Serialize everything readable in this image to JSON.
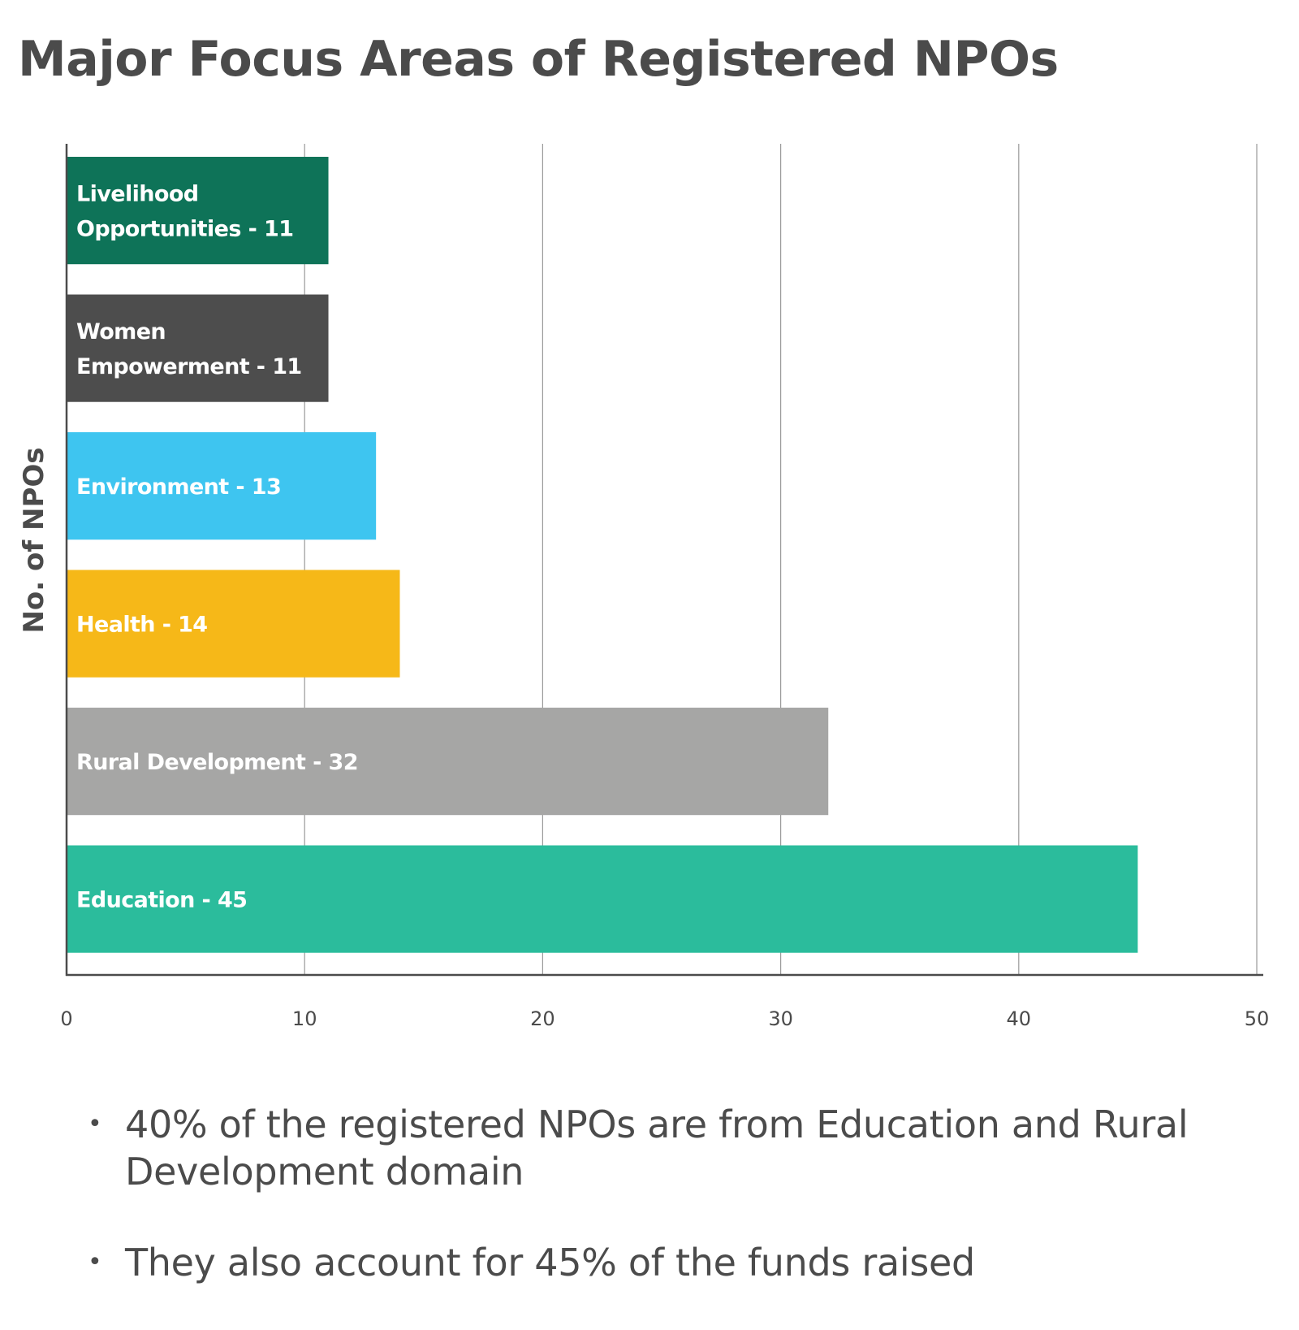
{
  "chart_data": {
    "type": "bar",
    "orientation": "horizontal",
    "title": "Major Focus Areas of Registered NPOs",
    "xlabel": "",
    "ylabel": "No. of NPOs",
    "xlim": [
      0,
      50
    ],
    "xticks": [
      0,
      10,
      20,
      30,
      40,
      50
    ],
    "grid": true,
    "categories": [
      "Livelihood Opportunities",
      "Women Empowerment",
      "Environment",
      "Health",
      "Rural Development",
      "Education"
    ],
    "values": [
      11,
      11,
      13,
      14,
      32,
      45
    ],
    "bar_labels": [
      [
        "Livelihood",
        "Opportunities - 11"
      ],
      [
        "Women",
        "Empowerment - 11"
      ],
      [
        "Environment - 13"
      ],
      [
        "Health - 14"
      ],
      [
        "Rural Development - 32"
      ],
      [
        "Education - 45"
      ]
    ],
    "colors": [
      "#0e7358",
      "#4d4d4d",
      "#3ec5f0",
      "#f6b818",
      "#a6a6a5",
      "#2bbc9c"
    ]
  },
  "notes": [
    "40% of the registered NPOs are from Education and Rural Development domain",
    "They also account for 45% of the funds raised"
  ],
  "bullet_glyph": "•"
}
